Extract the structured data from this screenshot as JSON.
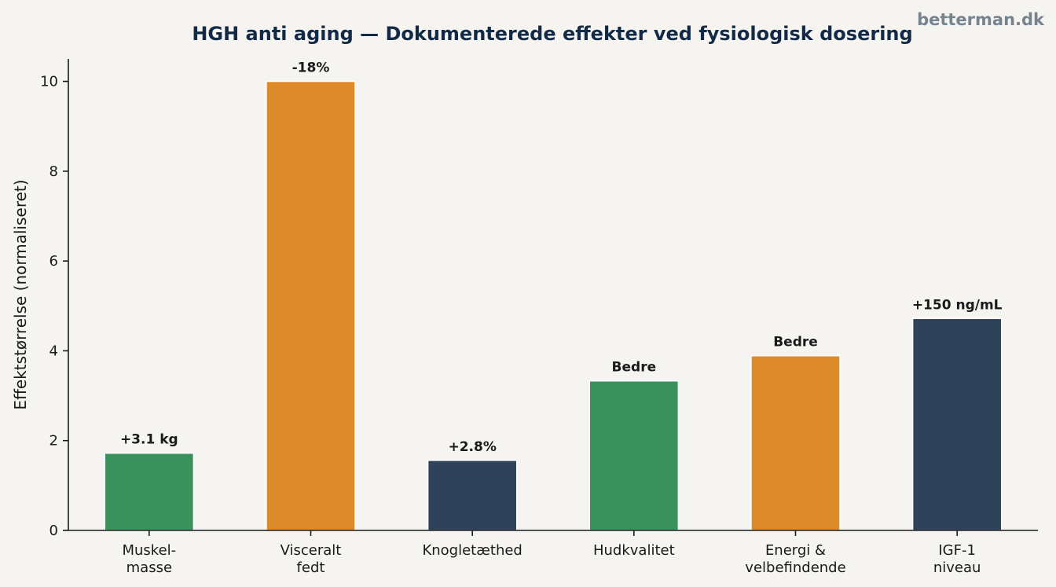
{
  "watermark": "betterman.dk",
  "chart_data": {
    "type": "bar",
    "title": "HGH anti aging — Dokumenterede effekter ved fysiologisk dosering",
    "xlabel": "",
    "ylabel": "Effektstørrelse (normaliseret)",
    "ylim": [
      0,
      10.5
    ],
    "yticks": [
      0,
      2,
      4,
      6,
      8,
      10
    ],
    "grid": false,
    "categories": [
      [
        "Muskel-",
        "masse"
      ],
      [
        "Visceralt",
        "fedt"
      ],
      [
        "Knogletæthed"
      ],
      [
        "Hudkvalitet"
      ],
      [
        "Energi &",
        "velbefindende"
      ],
      [
        "IGF-1",
        "niveau"
      ]
    ],
    "values": [
      1.72,
      10.0,
      1.56,
      3.33,
      3.89,
      4.72
    ],
    "labels": [
      "+3.1 kg",
      "-18%",
      "+2.8%",
      "Bedre",
      "Bedre",
      "+150 ng/mL"
    ],
    "colors": [
      "#3a915c",
      "#dd8a2b",
      "#2e4259",
      "#3a915c",
      "#dd8a2b",
      "#2e4259"
    ]
  }
}
